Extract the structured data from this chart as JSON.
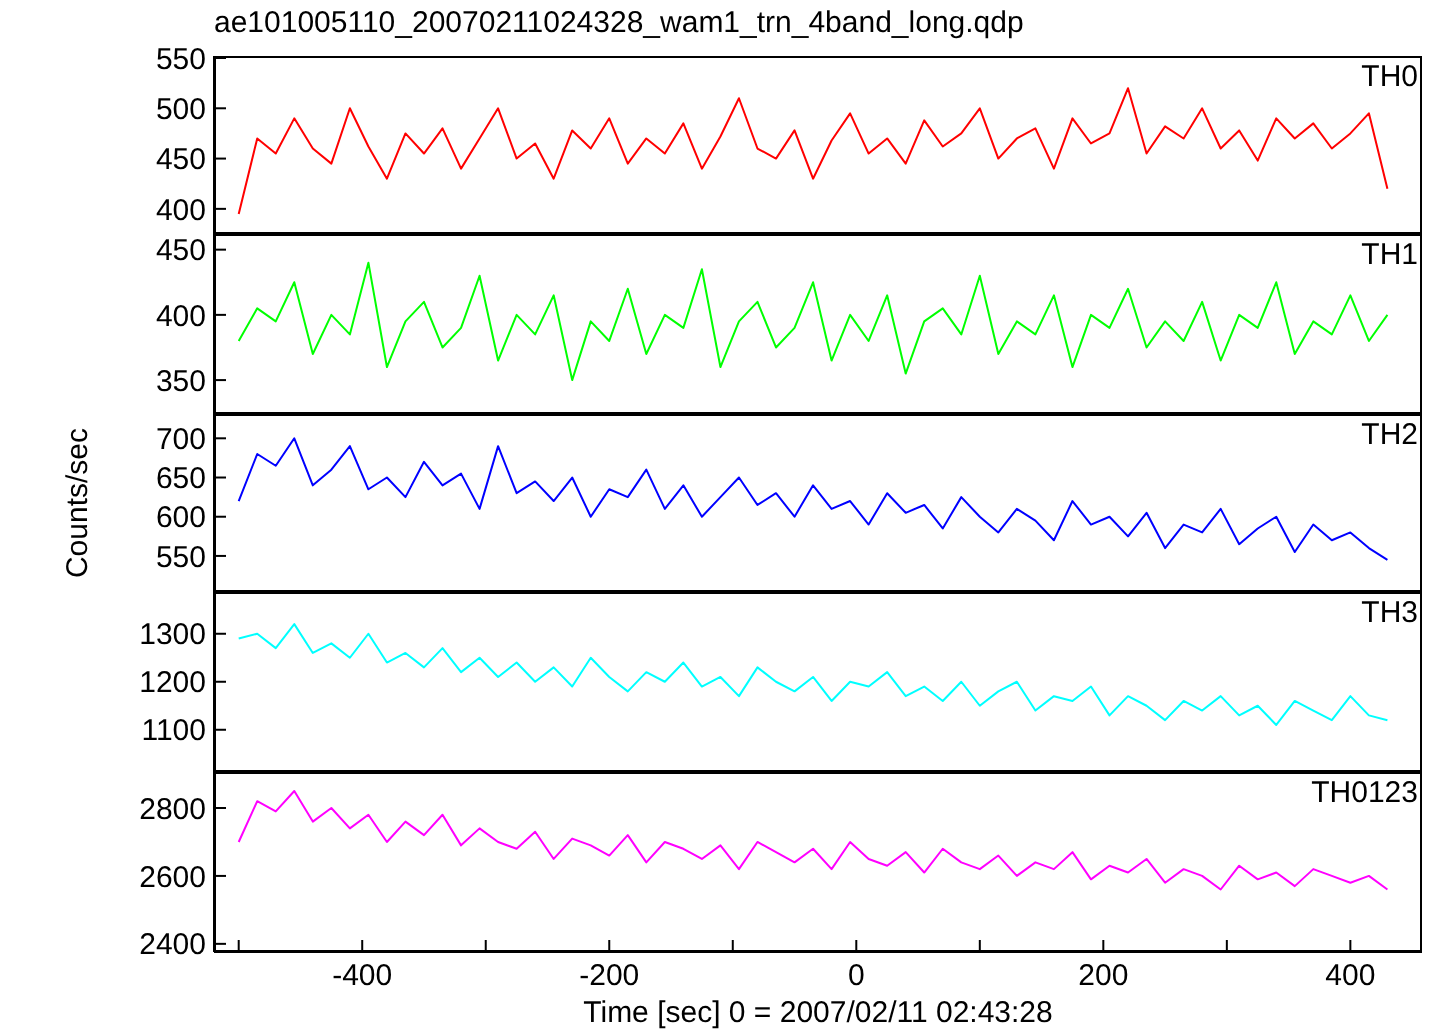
{
  "chart_data": [
    {
      "type": "line",
      "title": "ae101005110_20070211024328_wam1_trn_4band_long.qdp",
      "tick_labels": "y",
      "xlim": [
        -520,
        458
      ],
      "ylim": [
        375,
        552
      ],
      "yticks": [
        400,
        450,
        500,
        550
      ],
      "x": [
        -500,
        -485,
        -470,
        -455,
        -440,
        -425,
        -410,
        -395,
        -380,
        -365,
        -350,
        -335,
        -320,
        -305,
        -290,
        -275,
        -260,
        -245,
        -230,
        -215,
        -200,
        -185,
        -170,
        -155,
        -140,
        -125,
        -110,
        -95,
        -80,
        -65,
        -50,
        -35,
        -20,
        -5,
        10,
        25,
        40,
        55,
        70,
        85,
        100,
        115,
        130,
        145,
        160,
        175,
        190,
        205,
        220,
        235,
        250,
        265,
        280,
        295,
        310,
        325,
        340,
        355,
        370,
        385,
        400,
        415,
        430
      ],
      "series": [
        {
          "name": "TH0",
          "color": "#ff0000",
          "values": [
            395,
            470,
            455,
            490,
            460,
            445,
            500,
            462,
            430,
            475,
            455,
            480,
            440,
            470,
            500,
            450,
            465,
            430,
            478,
            460,
            490,
            445,
            470,
            455,
            485,
            440,
            472,
            510,
            460,
            450,
            478,
            430,
            468,
            495,
            455,
            470,
            445,
            488,
            462,
            475,
            500,
            450,
            470,
            480,
            440,
            490,
            465,
            475,
            520,
            455,
            482,
            470,
            500,
            460,
            478,
            448,
            490,
            470,
            485,
            460,
            475,
            495,
            420
          ]
        }
      ]
    },
    {
      "type": "line",
      "tick_labels": "y",
      "xlim": [
        -520,
        458
      ],
      "ylim": [
        324,
        462
      ],
      "yticks": [
        350,
        400,
        450
      ],
      "x": [
        -500,
        -485,
        -470,
        -455,
        -440,
        -425,
        -410,
        -395,
        -380,
        -365,
        -350,
        -335,
        -320,
        -305,
        -290,
        -275,
        -260,
        -245,
        -230,
        -215,
        -200,
        -185,
        -170,
        -155,
        -140,
        -125,
        -110,
        -95,
        -80,
        -65,
        -50,
        -35,
        -20,
        -5,
        10,
        25,
        40,
        55,
        70,
        85,
        100,
        115,
        130,
        145,
        160,
        175,
        190,
        205,
        220,
        235,
        250,
        265,
        280,
        295,
        310,
        325,
        340,
        355,
        370,
        385,
        400,
        415,
        430
      ],
      "series": [
        {
          "name": "TH1",
          "color": "#00ff00",
          "values": [
            380,
            405,
            395,
            425,
            370,
            400,
            385,
            440,
            360,
            395,
            410,
            375,
            390,
            430,
            365,
            400,
            385,
            415,
            350,
            395,
            380,
            420,
            370,
            400,
            390,
            435,
            360,
            395,
            410,
            375,
            390,
            425,
            365,
            400,
            380,
            415,
            355,
            395,
            405,
            385,
            430,
            370,
            395,
            385,
            415,
            360,
            400,
            390,
            420,
            375,
            395,
            380,
            410,
            365,
            400,
            390,
            425,
            370,
            395,
            385,
            415,
            380,
            400
          ]
        }
      ]
    },
    {
      "type": "line",
      "tick_labels": "y",
      "ylabel": "Counts/sec",
      "xlim": [
        -520,
        458
      ],
      "ylim": [
        504,
        731
      ],
      "yticks": [
        550,
        600,
        650,
        700
      ],
      "x": [
        -500,
        -485,
        -470,
        -455,
        -440,
        -425,
        -410,
        -395,
        -380,
        -365,
        -350,
        -335,
        -320,
        -305,
        -290,
        -275,
        -260,
        -245,
        -230,
        -215,
        -200,
        -185,
        -170,
        -155,
        -140,
        -125,
        -110,
        -95,
        -80,
        -65,
        -50,
        -35,
        -20,
        -5,
        10,
        25,
        40,
        55,
        70,
        85,
        100,
        115,
        130,
        145,
        160,
        175,
        190,
        205,
        220,
        235,
        250,
        265,
        280,
        295,
        310,
        325,
        340,
        355,
        370,
        385,
        400,
        415,
        430
      ],
      "series": [
        {
          "name": "TH2",
          "color": "#0000ff",
          "values": [
            620,
            680,
            665,
            700,
            640,
            660,
            690,
            635,
            650,
            625,
            670,
            640,
            655,
            610,
            690,
            630,
            645,
            620,
            650,
            600,
            635,
            625,
            660,
            610,
            640,
            600,
            625,
            650,
            615,
            630,
            600,
            640,
            610,
            620,
            590,
            630,
            605,
            615,
            585,
            625,
            600,
            580,
            610,
            595,
            570,
            620,
            590,
            600,
            575,
            605,
            560,
            590,
            580,
            610,
            565,
            585,
            600,
            555,
            590,
            570,
            580,
            560,
            545
          ]
        }
      ]
    },
    {
      "type": "line",
      "tick_labels": "y",
      "xlim": [
        -520,
        458
      ],
      "ylim": [
        1012,
        1387
      ],
      "yticks": [
        1100,
        1200,
        1300
      ],
      "x": [
        -500,
        -485,
        -470,
        -455,
        -440,
        -425,
        -410,
        -395,
        -380,
        -365,
        -350,
        -335,
        -320,
        -305,
        -290,
        -275,
        -260,
        -245,
        -230,
        -215,
        -200,
        -185,
        -170,
        -155,
        -140,
        -125,
        -110,
        -95,
        -80,
        -65,
        -50,
        -35,
        -20,
        -5,
        10,
        25,
        40,
        55,
        70,
        85,
        100,
        115,
        130,
        145,
        160,
        175,
        190,
        205,
        220,
        235,
        250,
        265,
        280,
        295,
        310,
        325,
        340,
        355,
        370,
        385,
        400,
        415,
        430
      ],
      "series": [
        {
          "name": "TH3",
          "color": "#00ffff",
          "values": [
            1290,
            1300,
            1270,
            1320,
            1260,
            1280,
            1250,
            1300,
            1240,
            1260,
            1230,
            1270,
            1220,
            1250,
            1210,
            1240,
            1200,
            1230,
            1190,
            1250,
            1210,
            1180,
            1220,
            1200,
            1240,
            1190,
            1210,
            1170,
            1230,
            1200,
            1180,
            1210,
            1160,
            1200,
            1190,
            1220,
            1170,
            1190,
            1160,
            1200,
            1150,
            1180,
            1200,
            1140,
            1170,
            1160,
            1190,
            1130,
            1170,
            1150,
            1120,
            1160,
            1140,
            1170,
            1130,
            1150,
            1110,
            1160,
            1140,
            1120,
            1170,
            1130,
            1120
          ]
        }
      ]
    },
    {
      "type": "line",
      "xlabel": "Time [sec] 0 = 2007/02/11 02:43:28",
      "xlim": [
        -520,
        458
      ],
      "xticks": [
        {
          "value": -500,
          "label": null
        },
        -400,
        {
          "value": -300,
          "label": null
        },
        -200,
        {
          "value": -100,
          "label": null
        },
        0,
        {
          "value": 100,
          "label": null
        },
        200,
        {
          "value": 300,
          "label": null
        },
        400
      ],
      "ylim": [
        2376,
        2906
      ],
      "yticks": [
        2400,
        2600,
        2800
      ],
      "x": [
        -500,
        -485,
        -470,
        -455,
        -440,
        -425,
        -410,
        -395,
        -380,
        -365,
        -350,
        -335,
        -320,
        -305,
        -290,
        -275,
        -260,
        -245,
        -230,
        -215,
        -200,
        -185,
        -170,
        -155,
        -140,
        -125,
        -110,
        -95,
        -80,
        -65,
        -50,
        -35,
        -20,
        -5,
        10,
        25,
        40,
        55,
        70,
        85,
        100,
        115,
        130,
        145,
        160,
        175,
        190,
        205,
        220,
        235,
        250,
        265,
        280,
        295,
        310,
        325,
        340,
        355,
        370,
        385,
        400,
        415,
        430
      ],
      "series": [
        {
          "name": "TH0123",
          "color": "#ff00ff",
          "values": [
            2700,
            2820,
            2790,
            2850,
            2760,
            2800,
            2740,
            2780,
            2700,
            2760,
            2720,
            2780,
            2690,
            2740,
            2700,
            2680,
            2730,
            2650,
            2710,
            2690,
            2660,
            2720,
            2640,
            2700,
            2680,
            2650,
            2690,
            2620,
            2700,
            2670,
            2640,
            2680,
            2620,
            2700,
            2650,
            2630,
            2670,
            2610,
            2680,
            2640,
            2620,
            2660,
            2600,
            2640,
            2620,
            2670,
            2590,
            2630,
            2610,
            2650,
            2580,
            2620,
            2600,
            2560,
            2630,
            2590,
            2610,
            2570,
            2620,
            2600,
            2580,
            2600,
            2560
          ]
        }
      ]
    }
  ]
}
